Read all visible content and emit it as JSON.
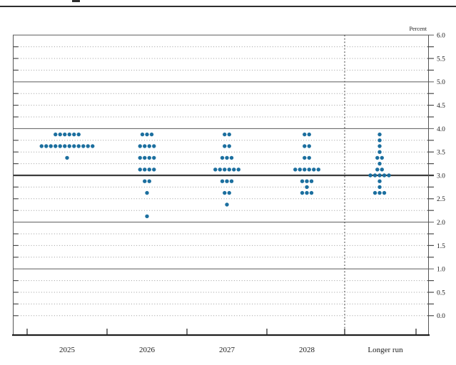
{
  "header": {
    "unit_label": "Percent"
  },
  "colors": {
    "dot": "#1c6f9f",
    "grid_dotted": "#9a9a9a",
    "grid_solid": "#6e6e6e",
    "grid_emphasis": "#3c3c3c",
    "axis": "#1f1f1f",
    "text": "#1c1c1c"
  },
  "y_axis": {
    "tick_labels": [
      "6.0",
      "5.5",
      "5.0",
      "4.5",
      "4.0",
      "3.5",
      "3.0",
      "2.5",
      "2.0",
      "1.5",
      "1.0",
      "0.5",
      "0.0"
    ],
    "label_step": 0.5,
    "grid_step": 0.25
  },
  "chart_data": {
    "type": "scatter",
    "title": "",
    "ylabel": "Percent",
    "ylim": [
      0.0,
      6.0
    ],
    "grid": "dotted quarters, solid integers, emphasized line at 3.0, dotted line at 0.0",
    "legend_position": "none",
    "separator": "vertical dotted line before Longer run column",
    "columns": [
      {
        "label": "2025",
        "dots": [
          {
            "value": 3.875,
            "count": 6
          },
          {
            "value": 3.625,
            "count": 12
          },
          {
            "value": 3.375,
            "count": 1
          }
        ]
      },
      {
        "label": "2026",
        "dots": [
          {
            "value": 3.875,
            "count": 3
          },
          {
            "value": 3.625,
            "count": 4
          },
          {
            "value": 3.375,
            "count": 4
          },
          {
            "value": 3.125,
            "count": 4
          },
          {
            "value": 2.875,
            "count": 2
          },
          {
            "value": 2.625,
            "count": 1
          },
          {
            "value": 2.125,
            "count": 1
          }
        ]
      },
      {
        "label": "2027",
        "dots": [
          {
            "value": 3.875,
            "count": 2
          },
          {
            "value": 3.625,
            "count": 2
          },
          {
            "value": 3.375,
            "count": 3
          },
          {
            "value": 3.125,
            "count": 6
          },
          {
            "value": 2.875,
            "count": 3
          },
          {
            "value": 2.625,
            "count": 2
          },
          {
            "value": 2.375,
            "count": 1
          }
        ]
      },
      {
        "label": "2028",
        "dots": [
          {
            "value": 3.875,
            "count": 2
          },
          {
            "value": 3.625,
            "count": 2
          },
          {
            "value": 3.375,
            "count": 2
          },
          {
            "value": 3.125,
            "count": 6
          },
          {
            "value": 2.875,
            "count": 3
          },
          {
            "value": 2.75,
            "count": 1
          },
          {
            "value": 2.625,
            "count": 3
          }
        ]
      },
      {
        "label": "Longer run",
        "dots": [
          {
            "value": 3.875,
            "count": 1
          },
          {
            "value": 3.75,
            "count": 1
          },
          {
            "value": 3.625,
            "count": 1
          },
          {
            "value": 3.5,
            "count": 1
          },
          {
            "value": 3.375,
            "count": 2
          },
          {
            "value": 3.25,
            "count": 1
          },
          {
            "value": 3.125,
            "count": 2
          },
          {
            "value": 3.0,
            "count": 5
          },
          {
            "value": 2.875,
            "count": 1
          },
          {
            "value": 2.75,
            "count": 1
          },
          {
            "value": 2.625,
            "count": 3
          }
        ]
      }
    ]
  }
}
